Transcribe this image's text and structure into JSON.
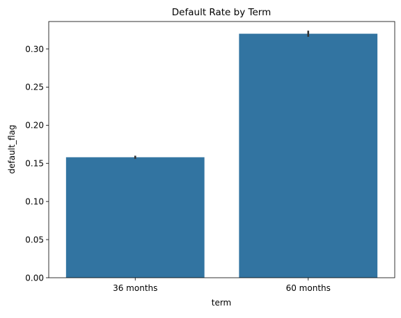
{
  "chart_data": {
    "type": "bar",
    "title": "Default Rate by Term",
    "xlabel": "term",
    "ylabel": "default_flag",
    "categories": [
      "36 months",
      "60 months"
    ],
    "values": [
      0.158,
      0.32
    ],
    "error_bars": [
      [
        0.156,
        0.16
      ],
      [
        0.316,
        0.324
      ]
    ],
    "ylim": [
      0,
      0.336
    ],
    "yticks": [
      0.0,
      0.05,
      0.1,
      0.15,
      0.2,
      0.25,
      0.3
    ],
    "ytick_labels": [
      "0.00",
      "0.05",
      "0.10",
      "0.15",
      "0.20",
      "0.25",
      "0.30"
    ],
    "grid": false,
    "bar_color": "#3274a1",
    "error_color": "#333333"
  }
}
